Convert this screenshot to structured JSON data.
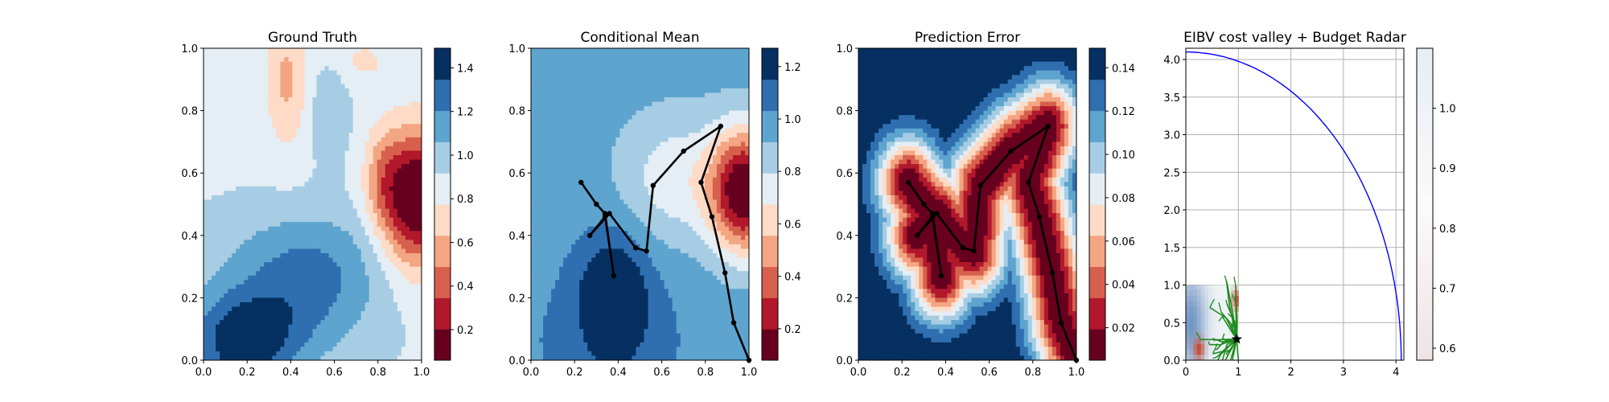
{
  "colors": {
    "rdbu_levels": [
      "#67001f",
      "#b2182b",
      "#d6604d",
      "#f4a582",
      "#fddbc7",
      "#e4eef4",
      "#a6cde3",
      "#5da4cf",
      "#2f6fb0",
      "#053061"
    ],
    "path": "#000000",
    "radar_arc": "#0000ff",
    "rrt_tree": "#1e8a1e",
    "grid": "#b0b0b0"
  },
  "chart_data": [
    {
      "type": "heatmap",
      "title": "Ground Truth",
      "xlim": [
        0,
        1
      ],
      "ylim": [
        0,
        1
      ],
      "xticks": [
        "0.0",
        "0.2",
        "0.4",
        "0.6",
        "0.8",
        "1.0"
      ],
      "yticks": [
        "0.0",
        "0.2",
        "0.4",
        "0.6",
        "0.8",
        "1.0"
      ],
      "field": {
        "base": 0.9,
        "bumps": [
          {
            "x": 0.98,
            "y": 0.52,
            "sx": 0.11,
            "sy": 0.15,
            "a": -0.95
          },
          {
            "x": 0.82,
            "y": 0.58,
            "sx": 0.06,
            "sy": 0.12,
            "a": -0.25
          },
          {
            "x": 0.38,
            "y": 0.9,
            "sx": 0.07,
            "sy": 0.15,
            "a": -0.3
          },
          {
            "x": 0.72,
            "y": 0.96,
            "sx": 0.12,
            "sy": 0.06,
            "a": -0.15
          },
          {
            "x": 0.18,
            "y": 0.06,
            "sx": 0.18,
            "sy": 0.12,
            "a": 0.55
          },
          {
            "x": 0.5,
            "y": 0.22,
            "sx": 0.22,
            "sy": 0.14,
            "a": 0.3
          },
          {
            "x": 0.42,
            "y": 0.36,
            "sx": 0.3,
            "sy": 0.1,
            "a": 0.12
          },
          {
            "x": 0.58,
            "y": 0.82,
            "sx": 0.06,
            "sy": 0.12,
            "a": 0.15
          }
        ]
      },
      "colorbar": {
        "vmin": 0.06,
        "vmax": 1.49,
        "ticks": [
          0.2,
          0.4,
          0.6,
          0.8,
          1.0,
          1.2,
          1.4
        ],
        "ticklabels": [
          "0.2",
          "0.4",
          "0.6",
          "0.8",
          "1.0",
          "1.2",
          "1.4"
        ]
      }
    },
    {
      "type": "heatmap",
      "title": "Conditional Mean",
      "xlim": [
        0,
        1
      ],
      "ylim": [
        0,
        1
      ],
      "xticks": [
        "0.0",
        "0.2",
        "0.4",
        "0.6",
        "0.8",
        "1.0"
      ],
      "yticks": [
        "0.0",
        "0.2",
        "0.4",
        "0.6",
        "0.8",
        "1.0"
      ],
      "field": {
        "base": 0.97,
        "bumps": [
          {
            "x": 0.98,
            "y": 0.54,
            "sx": 0.11,
            "sy": 0.14,
            "a": -0.9
          },
          {
            "x": 0.66,
            "y": 0.58,
            "sx": 0.18,
            "sy": 0.15,
            "a": -0.25
          },
          {
            "x": 0.38,
            "y": 0.2,
            "sx": 0.11,
            "sy": 0.14,
            "a": 0.35
          },
          {
            "x": 0.35,
            "y": 0.05,
            "sx": 0.4,
            "sy": 0.22,
            "a": 0.08
          }
        ]
      },
      "colorbar": {
        "vmin": 0.08,
        "vmax": 1.27,
        "ticks": [
          0.2,
          0.4,
          0.6,
          0.8,
          1.0,
          1.2
        ],
        "ticklabels": [
          "0.2",
          "0.4",
          "0.6",
          "0.8",
          "1.0",
          "1.2"
        ]
      },
      "path": {
        "x": [
          0.23,
          0.3,
          0.34,
          0.38,
          0.34,
          0.27,
          0.36,
          0.48,
          0.53,
          0.56,
          0.7,
          0.87,
          0.78,
          0.83,
          0.89,
          0.93,
          1.0
        ],
        "y": [
          0.57,
          0.5,
          0.47,
          0.27,
          0.46,
          0.4,
          0.47,
          0.36,
          0.35,
          0.56,
          0.67,
          0.75,
          0.57,
          0.46,
          0.28,
          0.12,
          0.0
        ]
      }
    },
    {
      "type": "heatmap",
      "title": "Prediction Error",
      "xlim": [
        0,
        1
      ],
      "ylim": [
        0,
        1
      ],
      "xticks": [
        "0.0",
        "0.2",
        "0.4",
        "0.6",
        "0.8",
        "1.0"
      ],
      "yticks": [
        "0.0",
        "0.2",
        "0.4",
        "0.6",
        "0.8",
        "1.0"
      ],
      "error_from_path": {
        "base": 0.15,
        "depth": 0.145,
        "sigma": 0.1
      },
      "colorbar": {
        "vmin": 0.005,
        "vmax": 0.149,
        "ticks": [
          0.02,
          0.04,
          0.06,
          0.08,
          0.1,
          0.12,
          0.14
        ],
        "ticklabels": [
          "0.02",
          "0.04",
          "0.06",
          "0.08",
          "0.10",
          "0.12",
          "0.14"
        ]
      },
      "path": {
        "x": [
          0.23,
          0.3,
          0.34,
          0.38,
          0.34,
          0.27,
          0.36,
          0.48,
          0.53,
          0.56,
          0.7,
          0.87,
          0.78,
          0.83,
          0.89,
          0.93,
          1.0
        ],
        "y": [
          0.57,
          0.5,
          0.47,
          0.27,
          0.46,
          0.4,
          0.47,
          0.36,
          0.35,
          0.56,
          0.67,
          0.75,
          0.57,
          0.46,
          0.28,
          0.12,
          0.0
        ]
      }
    },
    {
      "type": "line",
      "title": "EIBV cost valley + Budget Radar",
      "xlim": [
        0,
        4.15
      ],
      "ylim": [
        0,
        4.15
      ],
      "xticks": [
        0,
        1,
        2,
        3,
        4
      ],
      "xticklabels": [
        "0",
        "1",
        "2",
        "3",
        "4"
      ],
      "yticks": [
        0.0,
        0.5,
        1.0,
        1.5,
        2.0,
        2.5,
        3.0,
        3.5,
        4.0
      ],
      "yticklabels": [
        "0.0",
        "0.5",
        "1.0",
        "1.5",
        "2.0",
        "2.5",
        "3.0",
        "3.5",
        "4.0"
      ],
      "grid": true,
      "budget_radar": {
        "center": [
          0,
          0
        ],
        "radius": 4.1
      },
      "cost_valley_extent": [
        0,
        1,
        0,
        1
      ],
      "current_location": {
        "x": 0.97,
        "y": 0.28
      },
      "colorbar": {
        "vmin": 0.58,
        "vmax": 1.1,
        "ticks": [
          0.6,
          0.7,
          0.8,
          0.9,
          1.0
        ],
        "ticklabels": [
          "0.6",
          "0.7",
          "0.8",
          "0.9",
          "1.0"
        ]
      }
    }
  ]
}
